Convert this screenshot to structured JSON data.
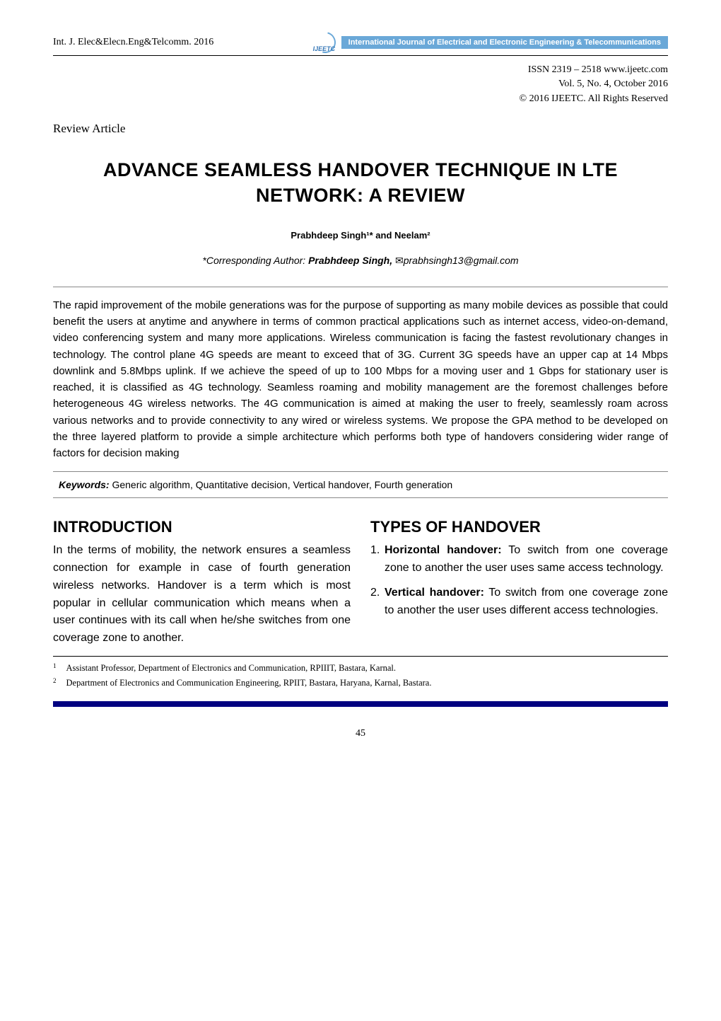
{
  "header": {
    "journal_ref": "Int. J. Elec&Elecn.Eng&Telcomm. 2016",
    "logo_acronym": "IJEETC",
    "logo_banner": "International Journal of Electrical and Electronic Engineering & Telecommunications"
  },
  "issn": {
    "line1": "ISSN 2319 – 2518 www.ijeetc.com",
    "line2": "Vol. 5, No. 4, October 2016",
    "line3": "© 2016 IJEETC. All Rights Reserved"
  },
  "article_type": "Review Article",
  "title": "ADVANCE SEAMLESS HANDOVER TECHNIQUE IN LTE NETWORK: A REVIEW",
  "authors_line": "Prabhdeep Singh¹* and Neelam²",
  "corresponding": {
    "prefix": "*Corresponding Author: ",
    "name": "Prabhdeep Singh,",
    "email": "prabhsingh13@gmail.com"
  },
  "abstract": "The rapid improvement of the mobile generations was for the purpose of supporting as many mobile devices as possible that could benefit the users at anytime and anywhere in terms of common practical applications such as internet access, video-on-demand, video conferencing system and many more applications. Wireless communication is facing the fastest revolutionary changes in technology. The control plane 4G speeds are meant to exceed that of 3G. Current 3G speeds have an upper cap at 14 Mbps downlink and 5.8Mbps uplink. If we achieve the speed of up to 100 Mbps for a moving user and 1 Gbps for stationary user is reached, it is classified as 4G technology. Seamless roaming and mobility management are the foremost challenges before heterogeneous 4G wireless networks. The 4G communication is aimed at making the user to freely, seamlessly roam across various networks and to provide connectivity to any wired or wireless systems. We propose the GPA method to be developed on the three layered platform to provide a simple architecture which performs both type of handovers considering wider range of factors for decision making",
  "keywords": {
    "label": "Keywords:",
    "text": " Generic algorithm, Quantitative decision, Vertical handover, Fourth generation"
  },
  "sections": {
    "intro": {
      "heading": "INTRODUCTION",
      "body": " In the terms of mobility, the network ensures a seamless connection for example in case of fourth generation wireless networks. Handover is a term which is most popular in cellular communication which means when a user continues with its call when he/she switches from one coverage zone to another."
    },
    "types": {
      "heading": "TYPES OF HANDOVER",
      "items": [
        {
          "num": "1.",
          "term": "Horizontal handover:",
          "desc": " To switch from one coverage zone to another the user uses same access technology."
        },
        {
          "num": "2.",
          "term": "Vertical handover:",
          "desc": " To switch from one coverage zone to another the user uses different access technologies."
        }
      ]
    }
  },
  "footnotes": [
    {
      "mark": "1",
      "text": "Assistant Professor, Department of Electronics and Communication, RPIIIT, Bastara, Karnal."
    },
    {
      "mark": "2",
      "text": "Department of Electronics and Communication Engineering, RPIIT, Bastara, Haryana, Karnal, Bastara."
    }
  ],
  "page_number": "45",
  "colors": {
    "banner_bg": "#6aa8d8",
    "banner_text": "#ffffff",
    "bottom_bar": "#010180",
    "rule_light": "#888888",
    "rule_dark": "#000000",
    "logo_text": "#3a7ab8"
  },
  "typography": {
    "title_fontsize": 27,
    "section_heading_fontsize": 22,
    "body_fontsize": 16,
    "abstract_fontsize": 15,
    "footnote_fontsize": 12.5,
    "authors_fontsize": 13
  }
}
